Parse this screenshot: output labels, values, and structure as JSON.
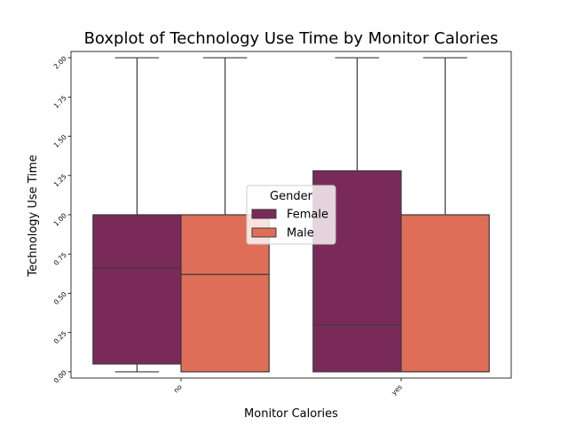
{
  "chart_data": {
    "type": "boxplot",
    "title": "Boxplot of Technology Use Time by Monitor Calories",
    "xlabel": "Monitor Calories",
    "ylabel": "Technology Use Time",
    "categories": [
      "no",
      "yes"
    ],
    "ylim": [
      -0.04,
      2.04
    ],
    "yticks": [
      "0.00",
      "0.25",
      "0.50",
      "0.75",
      "1.00",
      "1.25",
      "1.50",
      "1.75",
      "2.00"
    ],
    "legend": {
      "title": "Gender",
      "placement": "center"
    },
    "series": [
      {
        "name": "Female",
        "color": "#7a2a58",
        "boxes": [
          {
            "category": "no",
            "whisker_low": 0.0,
            "q1": 0.05,
            "median": 0.66,
            "q3": 1.0,
            "whisker_high": 2.0
          },
          {
            "category": "yes",
            "whisker_low": 0.0,
            "q1": 0.0,
            "median": 0.3,
            "q3": 1.28,
            "whisker_high": 2.0
          }
        ]
      },
      {
        "name": "Male",
        "color": "#df6e58",
        "boxes": [
          {
            "category": "no",
            "whisker_low": 0.0,
            "q1": 0.0,
            "median": 0.62,
            "q3": 1.0,
            "whisker_high": 2.0
          },
          {
            "category": "yes",
            "whisker_low": 0.0,
            "q1": 0.0,
            "median": 0.0,
            "q3": 1.0,
            "whisker_high": 2.0
          }
        ]
      }
    ]
  }
}
